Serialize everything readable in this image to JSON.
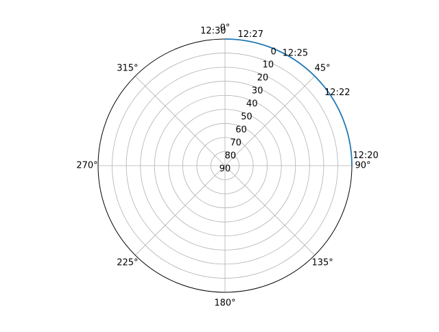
{
  "chart_data": {
    "type": "line",
    "projection": "polar",
    "theta_zero_location": "top",
    "theta_direction": "clockwise",
    "r_inverted": true,
    "r_range": [
      90,
      0
    ],
    "grid": true,
    "angle_ticks_deg": [
      0,
      45,
      90,
      135,
      180,
      225,
      270,
      315
    ],
    "angle_tick_labels": [
      "0°",
      "45°",
      "90°",
      "135°",
      "180°",
      "225°",
      "270°",
      "315°"
    ],
    "r_ticks": [
      0,
      10,
      20,
      30,
      40,
      50,
      60,
      70,
      80,
      90
    ],
    "r_tick_labels": [
      "0",
      "10",
      "20",
      "30",
      "40",
      "50",
      "60",
      "70",
      "80",
      "90"
    ],
    "series": [
      {
        "color": "#1f77b4",
        "points": [
          {
            "theta_deg": 0,
            "r": 0
          },
          {
            "theta_deg": 9,
            "r": 0
          },
          {
            "theta_deg": 18,
            "r": 0
          },
          {
            "theta_deg": 27,
            "r": 0
          },
          {
            "theta_deg": 36,
            "r": 0
          },
          {
            "theta_deg": 45,
            "r": 0
          },
          {
            "theta_deg": 54,
            "r": 0
          },
          {
            "theta_deg": 63,
            "r": 0
          },
          {
            "theta_deg": 72,
            "r": 0
          },
          {
            "theta_deg": 81,
            "r": 0
          },
          {
            "theta_deg": 90,
            "r": 0
          }
        ]
      }
    ],
    "point_labels": [
      {
        "text": "12:30",
        "theta_deg": -5,
        "r": -6
      },
      {
        "text": "12:27",
        "theta_deg": 11,
        "r": -5
      },
      {
        "text": "12:25",
        "theta_deg": 32,
        "r": -4
      },
      {
        "text": "12:22",
        "theta_deg": 57,
        "r": -5
      },
      {
        "text": "12:20",
        "theta_deg": 86,
        "r": -10
      }
    ]
  }
}
